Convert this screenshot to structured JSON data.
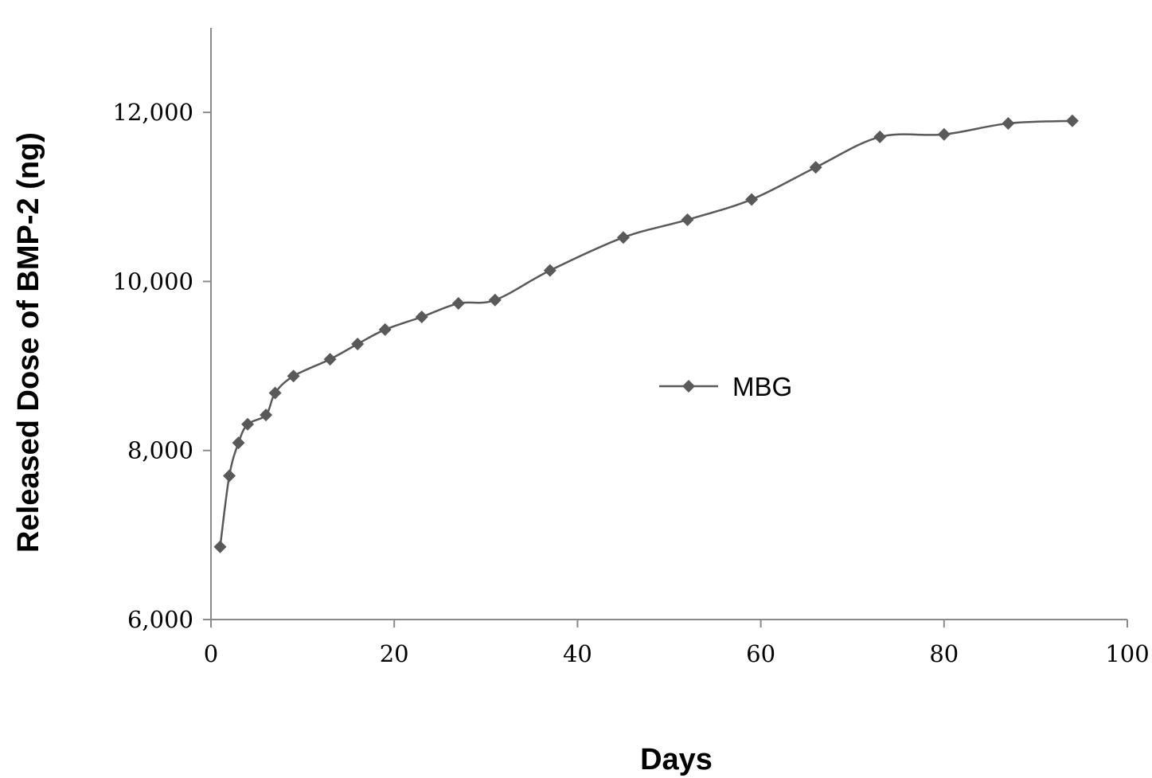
{
  "chart_data": {
    "type": "line",
    "title": "",
    "xlabel": "Days",
    "ylabel": "Released Dose of BMP-2 (ng)",
    "xlim": [
      0,
      100
    ],
    "ylim": [
      6000,
      13000
    ],
    "xticks": [
      0,
      20,
      40,
      60,
      80,
      100
    ],
    "yticks": [
      6000,
      8000,
      10000,
      12000
    ],
    "xtick_labels": [
      "0",
      "20",
      "40",
      "60",
      "80",
      "100"
    ],
    "ytick_labels": [
      "6,000",
      "8,000",
      "10,000",
      "12,000"
    ],
    "grid": false,
    "legend_position": "center-right",
    "colors": {
      "series": "#595959",
      "axis": "#8a8a8a"
    },
    "series": [
      {
        "name": "MBG",
        "marker": "diamond",
        "x": [
          1,
          2,
          3,
          4,
          6,
          7,
          9,
          13,
          16,
          19,
          23,
          27,
          31,
          37,
          45,
          52,
          59,
          66,
          73,
          80,
          87,
          94
        ],
        "y": [
          6860,
          7700,
          8090,
          8310,
          8420,
          8680,
          8880,
          9080,
          9260,
          9430,
          9580,
          9740,
          9780,
          10130,
          10520,
          10730,
          10970,
          11350,
          11710,
          11740,
          11870,
          11900
        ]
      }
    ]
  }
}
